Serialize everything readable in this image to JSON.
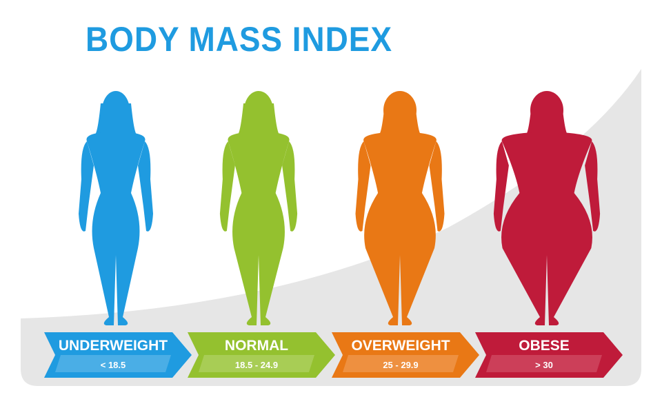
{
  "title": "BODY MASS INDEX",
  "categories": [
    {
      "label": "UNDERWEIGHT",
      "range": "< 18.5",
      "color": "#1f9be0",
      "light": "#4aaee6",
      "build": "thin"
    },
    {
      "label": "NORMAL",
      "range": "18.5 - 24.9",
      "color": "#94c12f",
      "light": "#a8cd55",
      "build": "normal"
    },
    {
      "label": "OVERWEIGHT",
      "range": "25 - 29.9",
      "color": "#e97815",
      "light": "#ee9040",
      "build": "overweight"
    },
    {
      "label": "OBESE",
      "range": "> 30",
      "color": "#bf1b3a",
      "light": "#cc3f59",
      "build": "obese"
    }
  ],
  "background_color": "#e6e6e6"
}
